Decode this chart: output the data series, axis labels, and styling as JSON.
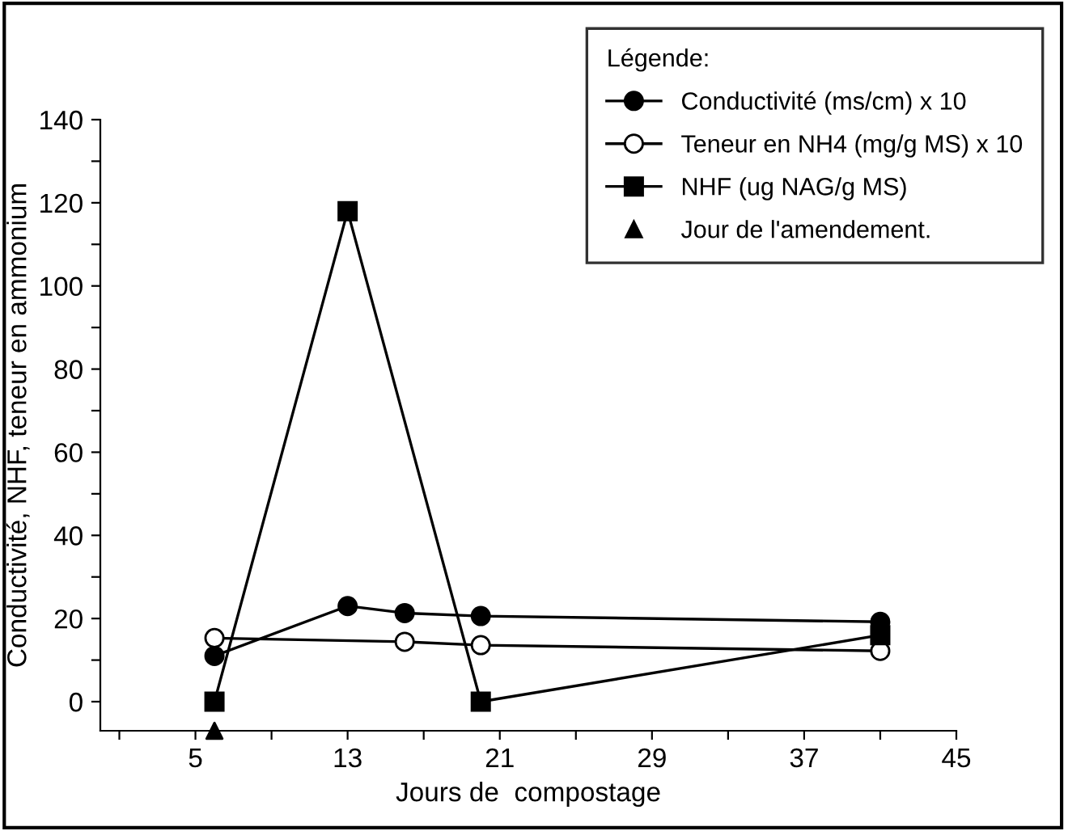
{
  "chart_data": {
    "type": "line",
    "xlabel": "Jours de  compostage",
    "ylabel": "Conductivité, NHF, teneur en ammonium",
    "legend_title": "Légende:",
    "xlim": [
      0,
      45
    ],
    "ylim": [
      -7,
      140
    ],
    "xticks": [
      {
        "value": 1,
        "label": null
      },
      5,
      {
        "value": 9,
        "label": null
      },
      13,
      {
        "value": 17,
        "label": null
      },
      21,
      {
        "value": 25,
        "label": null
      },
      29,
      {
        "value": 33,
        "label": null
      },
      37,
      {
        "value": 41,
        "label": null
      },
      45
    ],
    "yticks": [
      0,
      {
        "value": 10,
        "label": null
      },
      20,
      {
        "value": 30,
        "label": null
      },
      40,
      {
        "value": 50,
        "label": null
      },
      60,
      {
        "value": 70,
        "label": null
      },
      80,
      {
        "value": 90,
        "label": null
      },
      100,
      {
        "value": 110,
        "label": null
      },
      120,
      {
        "value": 130,
        "label": null
      },
      140
    ],
    "grid": false,
    "legend": "top right",
    "line_style": "solid",
    "series": [
      {
        "name": "Conductivité (ms/cm) x 10",
        "color": "#000000",
        "marker": "circle",
        "x": [
          6,
          13,
          16,
          20,
          41
        ],
        "values": [
          11,
          23,
          21.3,
          20.6,
          19.2
        ]
      },
      {
        "name": "Teneur en NH4 (mg/g MS) x 10",
        "color": "#000000",
        "marker": "circle",
        "x": [
          6,
          16,
          20,
          41
        ],
        "values": [
          15.3,
          14.4,
          13.6,
          12.2
        ]
      },
      {
        "name": "NHF (ug NAG/g MS)",
        "color": "#000000",
        "marker": "square",
        "x": [
          6,
          13,
          20,
          41
        ],
        "values": [
          0,
          118,
          0,
          16
        ]
      },
      {
        "name": "Jour de l'amendement.",
        "type": "scatter",
        "color": "#000000",
        "marker": "triangle",
        "x": [
          6
        ],
        "values": [
          -7
        ]
      }
    ]
  }
}
